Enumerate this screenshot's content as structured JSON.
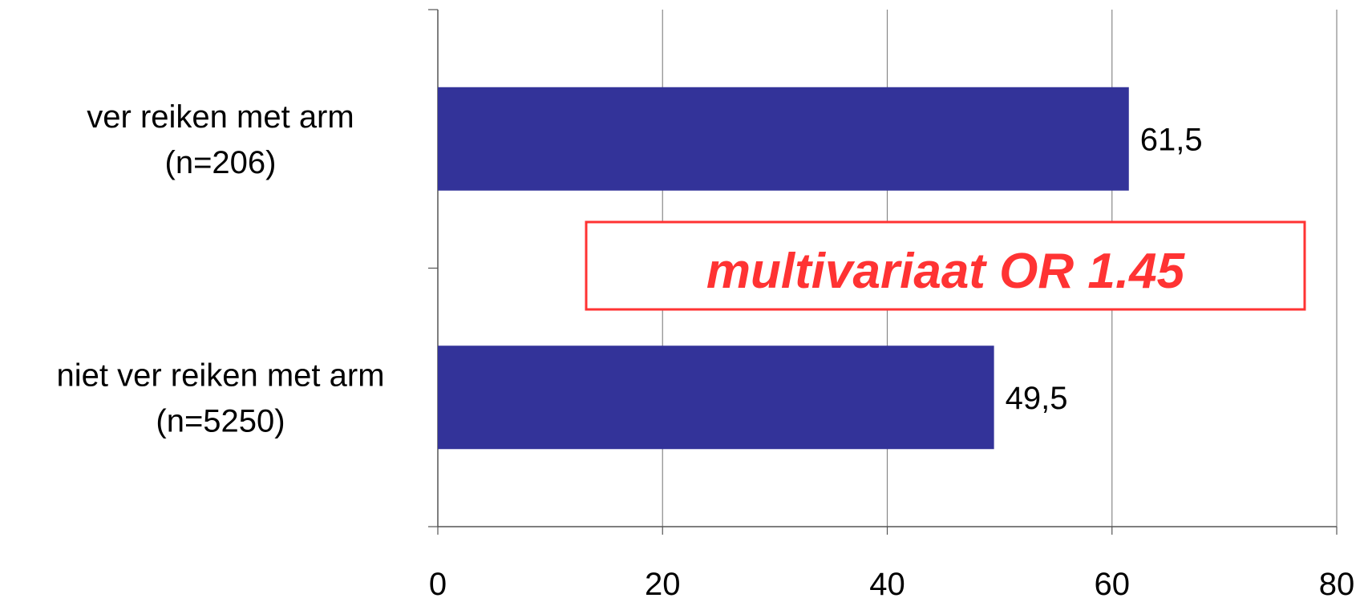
{
  "chart_data": {
    "type": "bar",
    "orientation": "horizontal",
    "categories": [
      "ver reiken met arm\n(n=206)",
      "niet ver reiken met arm\n(n=5250)"
    ],
    "values": [
      61.5,
      49.5
    ],
    "value_labels": [
      "61,5",
      "49,5"
    ],
    "x_ticks": [
      "0",
      "20",
      "40",
      "60",
      "80"
    ],
    "xlim": [
      0,
      80
    ],
    "grid": "vertical",
    "bar_color": "#333399",
    "annotation": {
      "text": "multivariaat OR 1.45",
      "color": "#ff3333"
    }
  }
}
